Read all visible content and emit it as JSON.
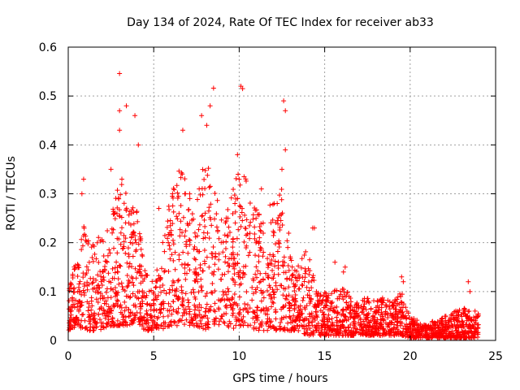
{
  "chart_data": {
    "type": "scatter",
    "title": "Day 134 of 2024, Rate Of TEC Index for receiver ab33",
    "xlabel": "GPS time / hours",
    "ylabel": "ROTI / TECUs",
    "xlim": [
      0,
      25
    ],
    "ylim": [
      0,
      0.6
    ],
    "xticks": [
      "0",
      "5",
      "10",
      "15",
      "20",
      "25"
    ],
    "yticks": [
      "0",
      "0.1",
      "0.2",
      "0.3",
      "0.4",
      "0.5",
      "0.6"
    ],
    "grid": true,
    "marker": "+",
    "color": "#ff0000",
    "envelope": {
      "x": [
        0,
        0.5,
        1,
        1.5,
        2,
        2.5,
        3,
        3.5,
        4,
        4.5,
        5,
        5.5,
        6,
        6.5,
        7,
        7.5,
        8,
        8.5,
        9,
        9.5,
        10,
        10.5,
        11,
        11.5,
        12,
        12.5,
        13,
        13.5,
        14,
        14.5,
        15,
        15.5,
        16,
        16.5,
        17,
        17.5,
        18,
        18.5,
        19,
        19.5,
        20,
        20.5,
        21,
        21.5,
        22,
        22.5,
        23,
        23.5,
        24
      ],
      "typical_max": [
        0.12,
        0.17,
        0.25,
        0.2,
        0.22,
        0.26,
        0.35,
        0.3,
        0.28,
        0.15,
        0.12,
        0.2,
        0.3,
        0.35,
        0.33,
        0.3,
        0.38,
        0.32,
        0.25,
        0.3,
        0.35,
        0.33,
        0.28,
        0.26,
        0.3,
        0.32,
        0.2,
        0.15,
        0.2,
        0.1,
        0.1,
        0.1,
        0.12,
        0.09,
        0.08,
        0.09,
        0.08,
        0.09,
        0.08,
        0.1,
        0.05,
        0.04,
        0.04,
        0.04,
        0.05,
        0.06,
        0.07,
        0.06,
        0.06
      ],
      "typical_min": [
        0.02,
        0.03,
        0.02,
        0.02,
        0.02,
        0.03,
        0.03,
        0.03,
        0.04,
        0.02,
        0.02,
        0.02,
        0.03,
        0.03,
        0.03,
        0.03,
        0.02,
        0.03,
        0.03,
        0.02,
        0.03,
        0.03,
        0.02,
        0.02,
        0.02,
        0.02,
        0.02,
        0.02,
        0.01,
        0.01,
        0.01,
        0.01,
        0.01,
        0.01,
        0.01,
        0.01,
        0.01,
        0.01,
        0.01,
        0.01,
        0.005,
        0.005,
        0.005,
        0.005,
        0.005,
        0.005,
        0.005,
        0.005,
        0.005
      ]
    },
    "notable_points": [
      {
        "x": 3.0,
        "y": 0.546
      },
      {
        "x": 3.0,
        "y": 0.47
      },
      {
        "x": 3.4,
        "y": 0.48
      },
      {
        "x": 3.9,
        "y": 0.46
      },
      {
        "x": 3.0,
        "y": 0.43
      },
      {
        "x": 4.1,
        "y": 0.4
      },
      {
        "x": 6.7,
        "y": 0.43
      },
      {
        "x": 7.8,
        "y": 0.46
      },
      {
        "x": 8.3,
        "y": 0.48
      },
      {
        "x": 8.5,
        "y": 0.516
      },
      {
        "x": 8.1,
        "y": 0.44
      },
      {
        "x": 10.1,
        "y": 0.52
      },
      {
        "x": 10.2,
        "y": 0.515
      },
      {
        "x": 9.9,
        "y": 0.38
      },
      {
        "x": 12.6,
        "y": 0.49
      },
      {
        "x": 12.7,
        "y": 0.47
      },
      {
        "x": 12.7,
        "y": 0.39
      },
      {
        "x": 12.5,
        "y": 0.35
      },
      {
        "x": 14.3,
        "y": 0.23
      },
      {
        "x": 14.4,
        "y": 0.23
      },
      {
        "x": 15.6,
        "y": 0.16
      },
      {
        "x": 16.1,
        "y": 0.14
      },
      {
        "x": 16.2,
        "y": 0.15
      },
      {
        "x": 19.5,
        "y": 0.13
      },
      {
        "x": 19.6,
        "y": 0.12
      },
      {
        "x": 23.4,
        "y": 0.12
      },
      {
        "x": 23.5,
        "y": 0.1
      },
      {
        "x": 0.9,
        "y": 0.33
      },
      {
        "x": 0.8,
        "y": 0.3
      },
      {
        "x": 2.5,
        "y": 0.35
      },
      {
        "x": 5.3,
        "y": 0.27
      },
      {
        "x": 6.1,
        "y": 0.3
      },
      {
        "x": 11.3,
        "y": 0.31
      }
    ]
  }
}
